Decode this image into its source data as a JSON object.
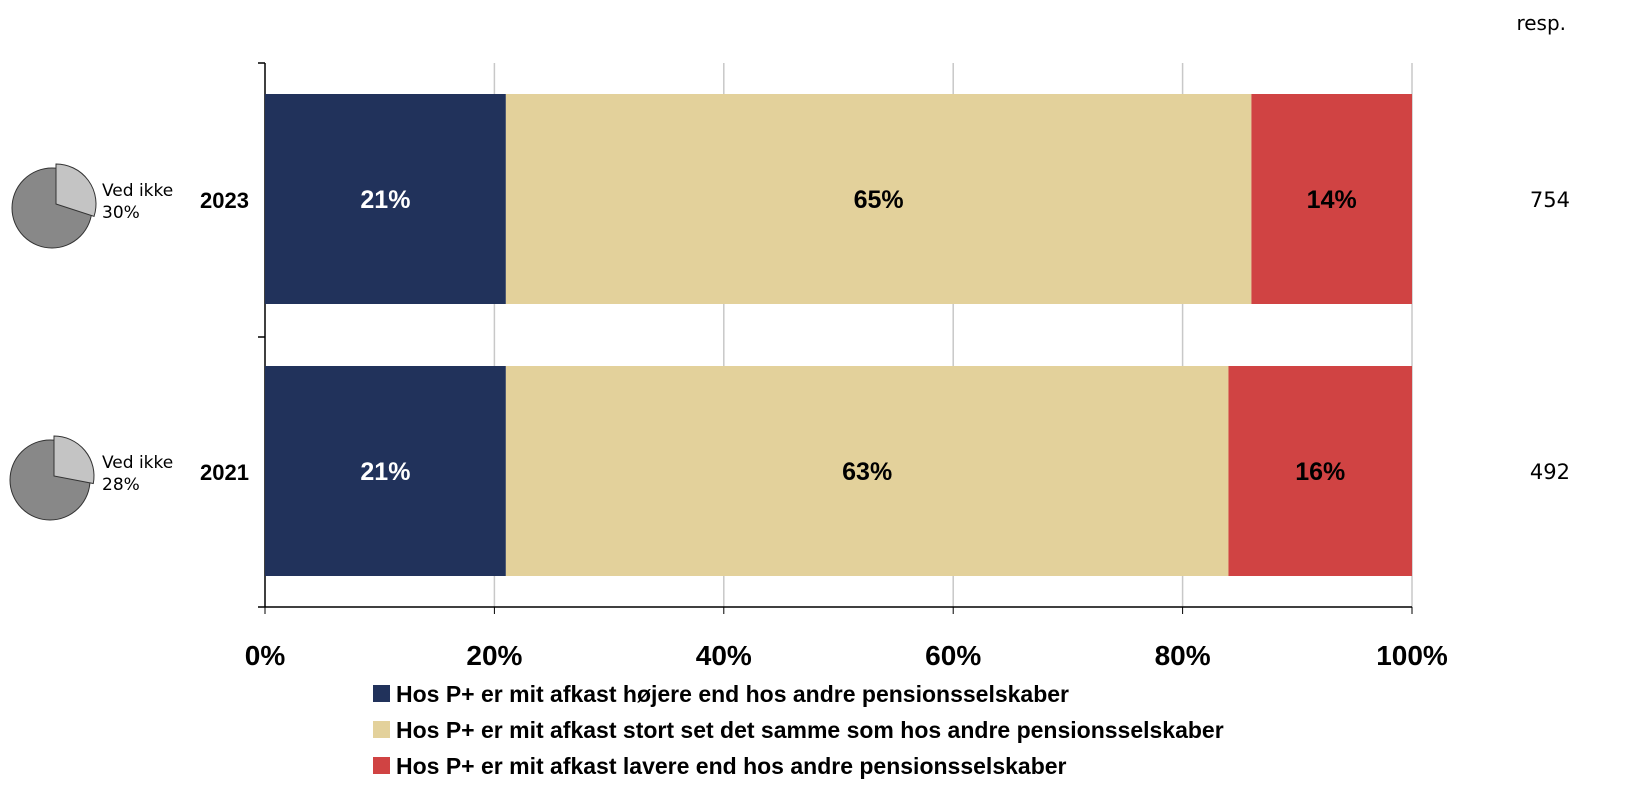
{
  "chart_data": {
    "type": "bar",
    "orientation": "horizontal",
    "stacked": true,
    "categories": [
      "2023",
      "2021"
    ],
    "series": [
      {
        "name": "Hos P+ er mit afkast højere end hos andre pensionsselskaber",
        "color": "#21325b",
        "values": [
          21,
          21
        ],
        "labels": [
          "21%",
          "21%"
        ],
        "label_color": "#ffffff"
      },
      {
        "name": "Hos P+ er mit afkast stort set det samme som hos andre pensionsselskaber",
        "color": "#e3d19b",
        "values": [
          65,
          63
        ],
        "labels": [
          "65%",
          "63%"
        ],
        "label_color": "#000000"
      },
      {
        "name": "Hos P+ er mit afkast lavere end hos andre pensionsselskaber",
        "color": "#d04343",
        "values": [
          14,
          16
        ],
        "labels": [
          "14%",
          "16%"
        ],
        "label_color": "#000000"
      }
    ],
    "xlim": [
      0,
      100
    ],
    "xticks": [
      "0%",
      "20%",
      "40%",
      "60%",
      "80%",
      "100%"
    ],
    "grid": true,
    "legend_position": "bottom",
    "resp_header": "resp.",
    "resp_values": [
      "754",
      "492"
    ],
    "dont_know": [
      {
        "label": "Ved ikke",
        "value_label": "30%",
        "value": 30
      },
      {
        "label": "Ved ikke",
        "value_label": "28%",
        "value": 28
      }
    ]
  }
}
